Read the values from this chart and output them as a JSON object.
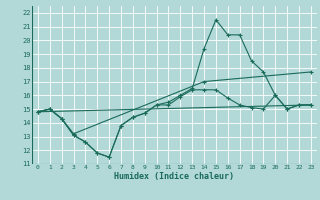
{
  "background_color": "#b2d8d8",
  "grid_color": "#c8e8e8",
  "line_color": "#1a6b5a",
  "xlabel": "Humidex (Indice chaleur)",
  "xlim": [
    -0.5,
    23.5
  ],
  "ylim": [
    11,
    22.5
  ],
  "xticks": [
    0,
    1,
    2,
    3,
    4,
    5,
    6,
    7,
    8,
    9,
    10,
    11,
    12,
    13,
    14,
    15,
    16,
    17,
    18,
    19,
    20,
    21,
    22,
    23
  ],
  "yticks": [
    11,
    12,
    13,
    14,
    15,
    16,
    17,
    18,
    19,
    20,
    21,
    22
  ],
  "series": [
    {
      "x": [
        0,
        1,
        2,
        3,
        4,
        5,
        6,
        7,
        8,
        9,
        10,
        11,
        12,
        13,
        14,
        15,
        16,
        17,
        18,
        19,
        20,
        21,
        22,
        23
      ],
      "y": [
        14.8,
        15.0,
        14.3,
        13.1,
        12.6,
        11.8,
        11.5,
        13.8,
        14.4,
        14.7,
        15.3,
        15.5,
        16.0,
        16.5,
        19.4,
        21.5,
        20.4,
        20.4,
        18.5,
        17.7,
        16.0,
        15.0,
        15.3,
        15.3
      ],
      "marker": true
    },
    {
      "x": [
        0,
        1,
        2,
        3,
        4,
        5,
        6,
        7,
        8,
        9,
        10,
        11,
        12,
        13,
        14,
        15,
        16,
        17,
        18,
        19,
        20,
        21,
        22,
        23
      ],
      "y": [
        14.8,
        15.0,
        14.3,
        13.1,
        12.6,
        11.8,
        11.5,
        13.8,
        14.4,
        14.7,
        15.3,
        15.3,
        15.9,
        16.4,
        16.4,
        16.4,
        15.8,
        15.3,
        15.1,
        15.0,
        16.0,
        15.0,
        15.3,
        15.3
      ],
      "marker": true
    },
    {
      "x": [
        0,
        1,
        2,
        3,
        14,
        23
      ],
      "y": [
        14.8,
        15.0,
        14.3,
        13.2,
        17.0,
        17.7
      ],
      "marker": true
    },
    {
      "x": [
        0,
        23
      ],
      "y": [
        14.8,
        15.3
      ],
      "marker": false
    }
  ]
}
